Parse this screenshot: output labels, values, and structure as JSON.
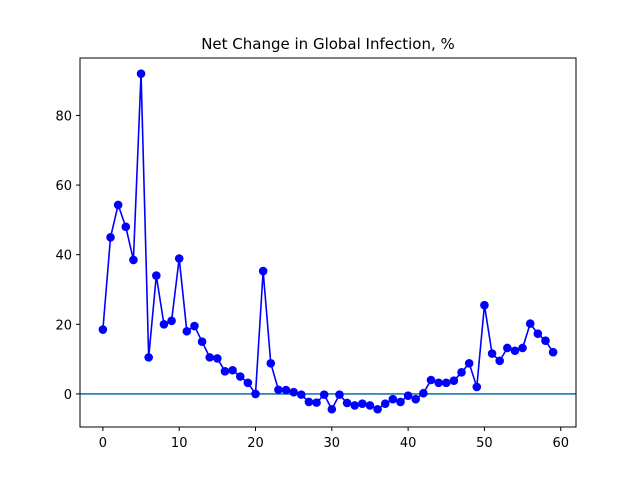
{
  "chart_data": {
    "type": "line",
    "title": "Net Change in Global Infection, %",
    "xlabel": "",
    "ylabel": "",
    "xlim": [
      -3,
      62
    ],
    "ylim": [
      -9.5,
      96.5
    ],
    "xticks": [
      0,
      10,
      20,
      30,
      40,
      50,
      60
    ],
    "yticks": [
      0,
      20,
      40,
      60,
      80
    ],
    "grid": false,
    "legend": "none",
    "reference_line": {
      "y": 0,
      "color": "#1f77b4"
    },
    "series": [
      {
        "color": "#0000ff",
        "marker": "circle",
        "x": [
          0,
          1,
          2,
          3,
          4,
          5,
          6,
          7,
          8,
          9,
          10,
          11,
          12,
          13,
          14,
          15,
          16,
          17,
          18,
          19,
          20,
          21,
          22,
          23,
          24,
          25,
          26,
          27,
          28,
          29,
          30,
          31,
          32,
          33,
          34,
          35,
          36,
          37,
          38,
          39,
          40,
          41,
          42,
          43,
          44,
          45,
          46,
          47,
          48,
          49,
          50,
          51,
          52,
          53,
          54,
          55,
          56,
          57,
          58,
          59
        ],
        "values": [
          18.5,
          45,
          54.3,
          48,
          38.5,
          92,
          10.5,
          34,
          20,
          21,
          38.9,
          18,
          19.5,
          15,
          10.5,
          10.2,
          6.5,
          6.8,
          5,
          3.2,
          0,
          35.3,
          8.8,
          1.2,
          1.1,
          0.5,
          -0.2,
          -2.3,
          -2.5,
          -0.2,
          -4.4,
          -0.2,
          -2.6,
          -3.3,
          -2.8,
          -3.3,
          -4.4,
          -2.8,
          -1.5,
          -2.3,
          -0.5,
          -1.5,
          0.2,
          4,
          3.2,
          3.2,
          3.8,
          6.2,
          8.8,
          2,
          25.5,
          11.6,
          9.5,
          13.2,
          12.4,
          13.2,
          20.2,
          17.3,
          15.3,
          12
        ]
      }
    ]
  }
}
